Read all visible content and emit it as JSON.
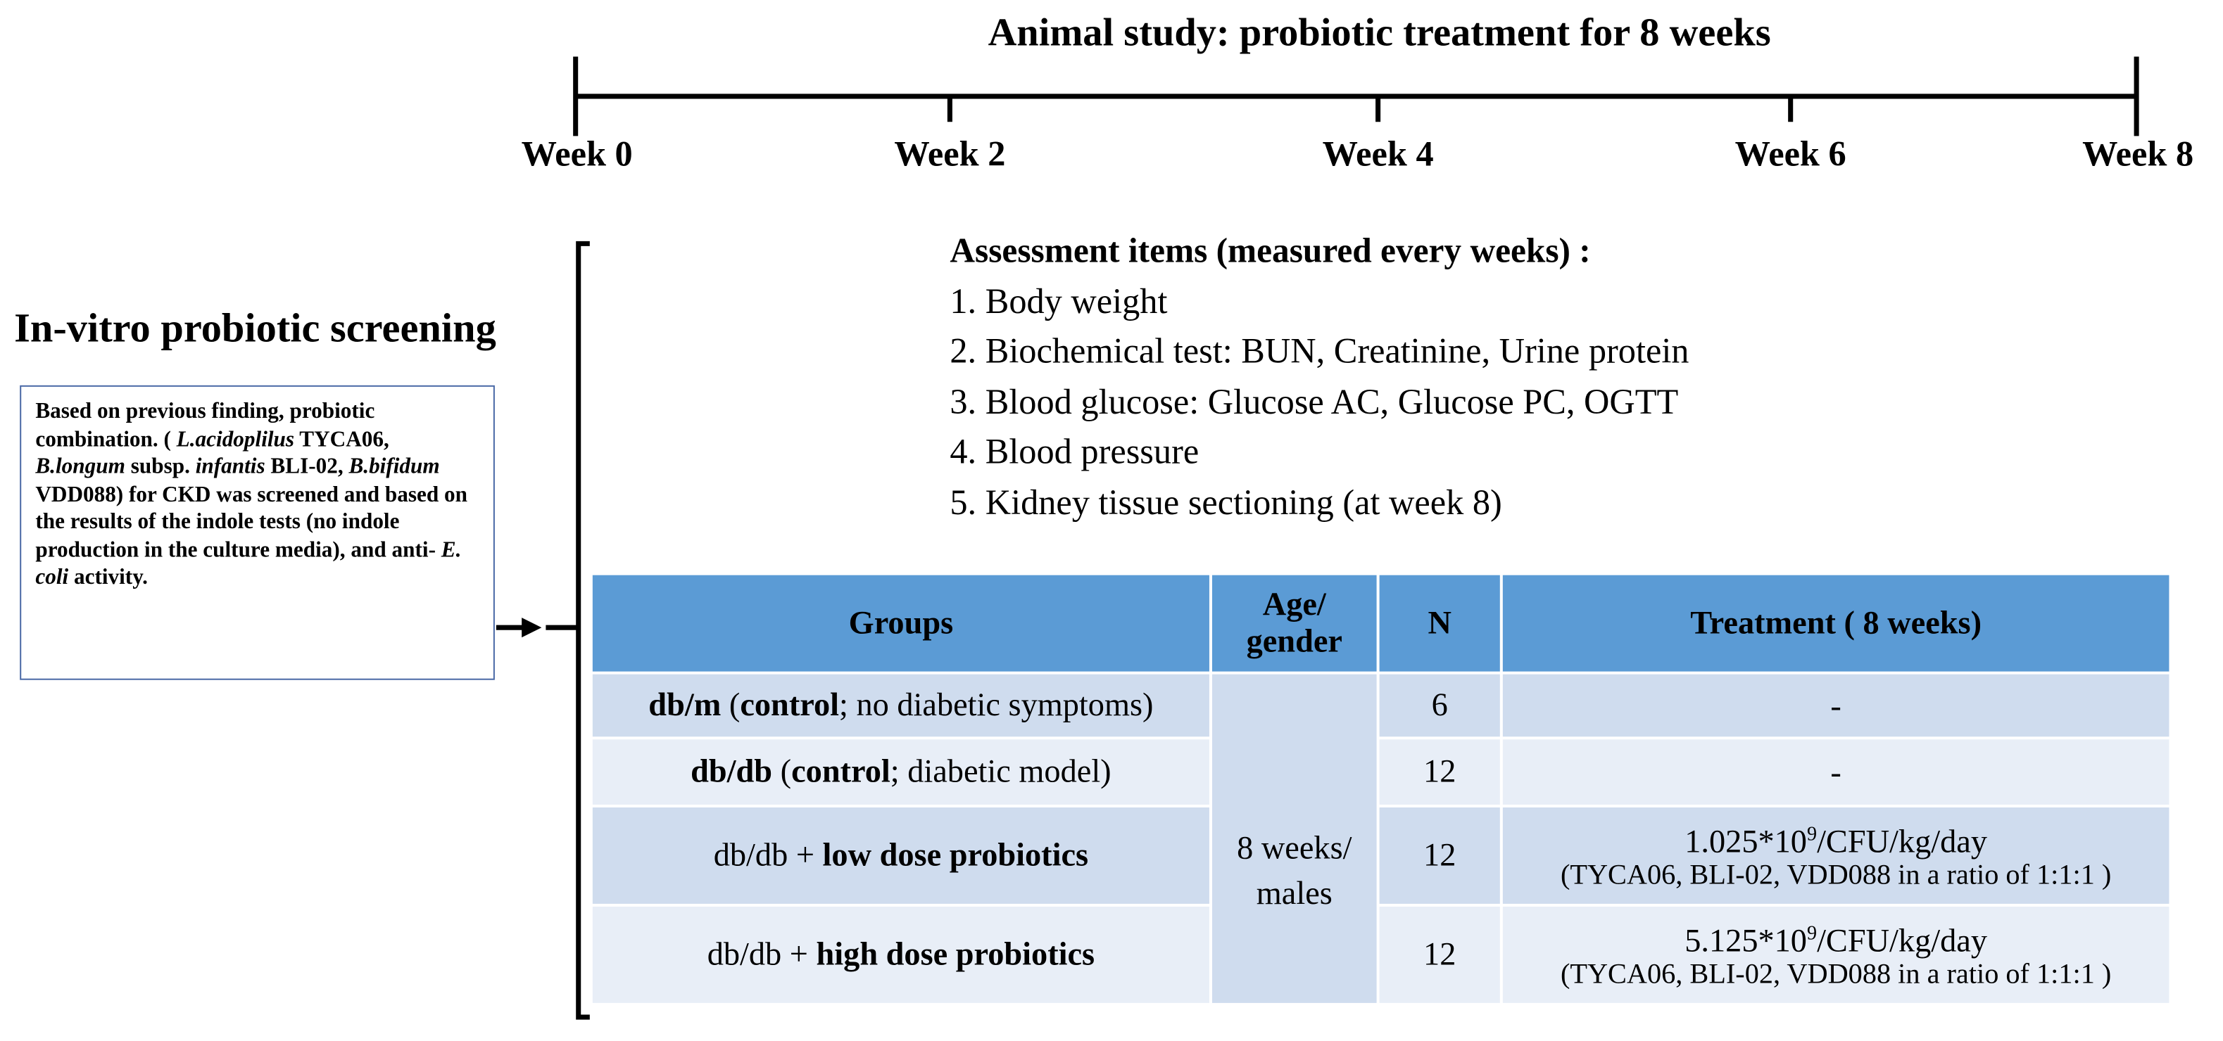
{
  "timeline": {
    "title": "Animal study: probiotic treatment for 8 weeks",
    "weeks": [
      "Week 0",
      "Week 2",
      "Week 4",
      "Week 6",
      "Week 8"
    ]
  },
  "screening": {
    "title": "In-vitro probiotic screening",
    "text": [
      {
        "text": "Based on previous finding, probiotic combination. ( "
      },
      {
        "text": "L.acidoplilus",
        "italic": true
      },
      {
        "text": " TYCA06, "
      },
      {
        "text": "B.longum",
        "italic": true
      },
      {
        "text": " subsp. "
      },
      {
        "text": "infantis",
        "italic": true
      },
      {
        "text": " BLI-02, "
      },
      {
        "text": "B.bifidum",
        "italic": true
      },
      {
        "text": " VDD088) for CKD was screened and based on the results of the indole tests (no indole production in the culture media), and anti- "
      },
      {
        "text": "E. coli",
        "italic": true
      },
      {
        "text": " activity."
      }
    ]
  },
  "assessment": {
    "title": "Assessment items (measured every weeks) :",
    "items": [
      "1. Body weight",
      "2. Biochemical test:  BUN, Creatinine, Urine protein",
      "3. Blood glucose: Glucose AC, Glucose PC, OGTT",
      "4. Blood pressure",
      "5. Kidney tissue sectioning (at week 8)"
    ]
  },
  "table": {
    "headers": [
      "Groups",
      "Age/ gender",
      "N",
      "Treatment ( 8 weeks)"
    ],
    "age": "8 weeks/ males",
    "rows": [
      {
        "group": [
          {
            "text": "db/m",
            "bold": true
          },
          {
            "text": " ("
          },
          {
            "text": "control",
            "bold": true
          },
          {
            "text": "; no diabetic symptoms)"
          }
        ],
        "n": "6",
        "treatment": {
          "main": [
            {
              "text": "-"
            }
          ]
        }
      },
      {
        "group": [
          {
            "text": "db/db",
            "bold": true
          },
          {
            "text": " ("
          },
          {
            "text": "control",
            "bold": true
          },
          {
            "text": "; diabetic model)"
          }
        ],
        "n": "12",
        "treatment": {
          "main": [
            {
              "text": "-"
            }
          ]
        }
      },
      {
        "group": [
          {
            "text": "db/db + "
          },
          {
            "text": "low dose probiotics",
            "bold": true
          }
        ],
        "n": "12",
        "treatment": {
          "main": [
            {
              "text": "1.025*10"
            },
            {
              "text": "9",
              "sup": true
            },
            {
              "text": "/CFU/kg/day"
            }
          ],
          "note": "(TYCA06, BLI-02, VDD088 in a ratio of 1:1:1 )"
        }
      },
      {
        "group": [
          {
            "text": "db/db + "
          },
          {
            "text": "high dose probiotics",
            "bold": true
          }
        ],
        "n": "12",
        "treatment": {
          "main": [
            {
              "text": "5.125*10"
            },
            {
              "text": "9",
              "sup": true
            },
            {
              "text": "/CFU/kg/day"
            }
          ],
          "note": "(TYCA06, BLI-02, VDD088 in a ratio of 1:1:1 )"
        }
      }
    ]
  }
}
